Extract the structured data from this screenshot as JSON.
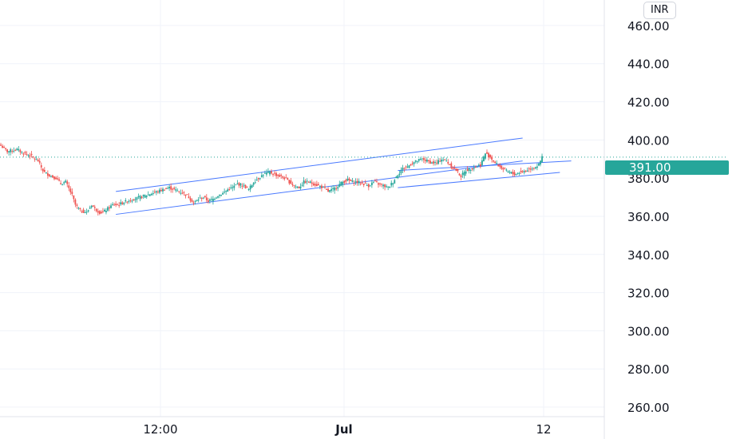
{
  "chart_data": {
    "type": "candlestick",
    "currency": "INR",
    "last_price": "391.00",
    "ylim": [
      252,
      474
    ],
    "y_ticks": [
      "260.00",
      "280.00",
      "300.00",
      "320.00",
      "340.00",
      "360.00",
      "380.00",
      "400.00",
      "420.00",
      "440.00",
      "460.00"
    ],
    "x_ticks": [
      {
        "label": "12:00",
        "bold": false
      },
      {
        "label": "Jul",
        "bold": true
      },
      {
        "label": "12",
        "bold": false
      }
    ],
    "price_path": [
      [
        0,
        397
      ],
      [
        4,
        394
      ],
      [
        10,
        395
      ],
      [
        14,
        393
      ],
      [
        18,
        392
      ],
      [
        21,
        390
      ],
      [
        23,
        389
      ],
      [
        26,
        384
      ],
      [
        27,
        383
      ],
      [
        29,
        382
      ],
      [
        31,
        381
      ],
      [
        34,
        380
      ],
      [
        37,
        377
      ],
      [
        40,
        378
      ],
      [
        44,
        371
      ],
      [
        46,
        366
      ],
      [
        49,
        363
      ],
      [
        53,
        362
      ],
      [
        56,
        366
      ],
      [
        58,
        364
      ],
      [
        61,
        362
      ],
      [
        63,
        362
      ],
      [
        66,
        364
      ],
      [
        69,
        366
      ],
      [
        72,
        366
      ],
      [
        75,
        367
      ],
      [
        78,
        368
      ],
      [
        82,
        369
      ],
      [
        86,
        370
      ],
      [
        90,
        371
      ],
      [
        93,
        372
      ],
      [
        97,
        373
      ],
      [
        100,
        374
      ],
      [
        104,
        375
      ],
      [
        107,
        374
      ],
      [
        110,
        373
      ],
      [
        113,
        372
      ],
      [
        116,
        370
      ],
      [
        119,
        367
      ],
      [
        122,
        369
      ],
      [
        125,
        370
      ],
      [
        128,
        368
      ],
      [
        131,
        369
      ],
      [
        134,
        371
      ],
      [
        137,
        372
      ],
      [
        140,
        374
      ],
      [
        143,
        375
      ],
      [
        146,
        377
      ],
      [
        150,
        376
      ],
      [
        153,
        374
      ],
      [
        156,
        378
      ],
      [
        159,
        380
      ],
      [
        162,
        382
      ],
      [
        166,
        383
      ],
      [
        169,
        382
      ],
      [
        172,
        381
      ],
      [
        175,
        380
      ],
      [
        178,
        378
      ],
      [
        181,
        376
      ],
      [
        184,
        375
      ],
      [
        187,
        378
      ],
      [
        190,
        378
      ],
      [
        193,
        377
      ],
      [
        196,
        376
      ],
      [
        199,
        375
      ],
      [
        202,
        373
      ],
      [
        205,
        374
      ],
      [
        208,
        376
      ],
      [
        211,
        378
      ],
      [
        214,
        379
      ],
      [
        217,
        378
      ],
      [
        220,
        378
      ],
      [
        224,
        377
      ],
      [
        227,
        376
      ],
      [
        230,
        378
      ],
      [
        233,
        377
      ],
      [
        236,
        376
      ],
      [
        239,
        375
      ],
      [
        242,
        378
      ],
      [
        245,
        382
      ],
      [
        248,
        385
      ],
      [
        251,
        386
      ],
      [
        254,
        388
      ],
      [
        257,
        389
      ],
      [
        260,
        390
      ],
      [
        263,
        389
      ],
      [
        266,
        388
      ],
      [
        269,
        388
      ],
      [
        272,
        390
      ],
      [
        275,
        389
      ],
      [
        278,
        386
      ],
      [
        281,
        384
      ],
      [
        284,
        381
      ],
      [
        287,
        384
      ],
      [
        290,
        385
      ],
      [
        293,
        386
      ],
      [
        296,
        387
      ],
      [
        299,
        393
      ],
      [
        302,
        391
      ],
      [
        305,
        388
      ],
      [
        308,
        386
      ],
      [
        311,
        384
      ],
      [
        314,
        383
      ],
      [
        317,
        382
      ],
      [
        320,
        383
      ],
      [
        324,
        384
      ],
      [
        327,
        385
      ],
      [
        330,
        386
      ],
      [
        332,
        387
      ],
      [
        334,
        391
      ]
    ],
    "channels": [
      {
        "start": [
          25.5,
          372
        ],
        "end": [
          97.5,
          400
        ]
      },
      {
        "start": [
          25.5,
          360
        ],
        "end": [
          124,
          388
        ]
      },
      {
        "start": [
          175,
          381
        ],
        "end": [
          124,
          388
        ]
      }
    ]
  }
}
